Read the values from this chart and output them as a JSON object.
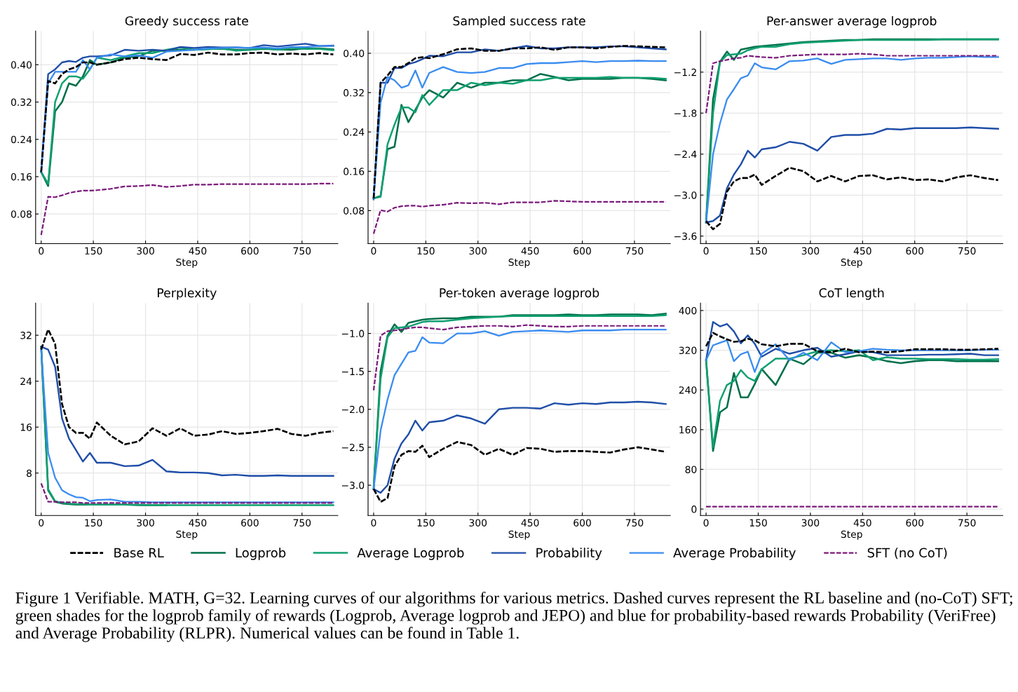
{
  "chart_data": [
    {
      "type": "line",
      "title": "Greedy success rate",
      "xlabel": "Step",
      "grid": true,
      "legend": "bottom",
      "x": [
        0,
        20,
        40,
        60,
        80,
        100,
        120,
        140,
        160,
        200,
        240,
        280,
        320,
        360,
        400,
        440,
        480,
        520,
        560,
        600,
        640,
        680,
        720,
        760,
        800,
        840
      ],
      "xlim": [
        -16,
        853
      ],
      "xticks": [
        0,
        150,
        300,
        450,
        600,
        750
      ],
      "ylim": [
        0.0165,
        0.472
      ],
      "yticks": [
        {
          "value": 0.08,
          "label": "0.08"
        },
        {
          "value": 0.16,
          "label": "0.16"
        },
        {
          "value": 0.24,
          "label": "0.24"
        },
        {
          "value": 0.32,
          "label": "0.32"
        },
        {
          "value": 0.4,
          "label": "0.40"
        }
      ],
      "series": [
        {
          "name": "Base RL",
          "color": "#000000",
          "line_style": "dashed",
          "values": [
            0.17,
            0.365,
            0.36,
            0.38,
            0.39,
            0.395,
            0.405,
            0.405,
            0.4,
            0.405,
            0.412,
            0.415,
            0.412,
            0.41,
            0.423,
            0.421,
            0.426,
            0.422,
            0.422,
            0.425,
            0.426,
            0.422,
            0.424,
            0.422,
            0.425,
            0.422
          ]
        },
        {
          "name": "Logprob",
          "color": "#00704a",
          "line_style": "solid",
          "values": [
            0.17,
            0.14,
            0.3,
            0.32,
            0.36,
            0.355,
            0.375,
            0.41,
            0.4,
            0.405,
            0.415,
            0.418,
            0.43,
            0.43,
            0.432,
            0.432,
            0.434,
            0.434,
            0.432,
            0.432,
            0.434,
            0.433,
            0.432,
            0.435,
            0.435,
            0.433
          ]
        },
        {
          "name": "Average Logprob",
          "color": "#10a072",
          "line_style": "solid",
          "values": [
            0.17,
            0.145,
            0.32,
            0.36,
            0.375,
            0.375,
            0.37,
            0.39,
            0.415,
            0.41,
            0.418,
            0.425,
            0.425,
            0.432,
            0.437,
            0.432,
            0.433,
            0.435,
            0.43,
            0.432,
            0.435,
            0.432,
            0.436,
            0.434,
            0.434,
            0.431
          ]
        },
        {
          "name": "Probability",
          "color": "#1f4ea8",
          "line_style": "solid",
          "values": [
            0.17,
            0.38,
            0.39,
            0.405,
            0.408,
            0.406,
            0.415,
            0.418,
            0.418,
            0.42,
            0.432,
            0.43,
            0.432,
            0.43,
            0.438,
            0.436,
            0.438,
            0.437,
            0.437,
            0.436,
            0.442,
            0.439,
            0.442,
            0.445,
            0.44,
            0.441
          ]
        },
        {
          "name": "Average Probability",
          "color": "#3a8cf0",
          "line_style": "solid",
          "values": [
            0.17,
            0.36,
            0.385,
            0.385,
            0.385,
            0.385,
            0.41,
            0.39,
            0.415,
            0.422,
            0.418,
            0.42,
            0.415,
            0.428,
            0.43,
            0.432,
            0.435,
            0.436,
            0.437,
            0.436,
            0.437,
            0.435,
            0.438,
            0.438,
            0.44,
            0.44
          ]
        },
        {
          "name": "SFT (no CoT)",
          "color": "#7b1a7b",
          "line_style": "dashed",
          "values": [
            0.035,
            0.117,
            0.116,
            0.12,
            0.125,
            0.128,
            0.13,
            0.13,
            0.131,
            0.134,
            0.139,
            0.14,
            0.142,
            0.138,
            0.14,
            0.143,
            0.143,
            0.144,
            0.144,
            0.144,
            0.144,
            0.144,
            0.144,
            0.144,
            0.145,
            0.145
          ]
        }
      ]
    },
    {
      "type": "line",
      "title": "Sampled success rate",
      "xlabel": "Step",
      "grid": true,
      "x": [
        0,
        20,
        40,
        60,
        80,
        100,
        120,
        140,
        160,
        200,
        240,
        280,
        320,
        360,
        400,
        440,
        480,
        520,
        560,
        600,
        640,
        680,
        720,
        760,
        800,
        840
      ],
      "xlim": [
        -16,
        853
      ],
      "xticks": [
        0,
        150,
        300,
        450,
        600,
        750
      ],
      "ylim": [
        0.013,
        0.445
      ],
      "yticks": [
        {
          "value": 0.08,
          "label": "0.08"
        },
        {
          "value": 0.16,
          "label": "0.16"
        },
        {
          "value": 0.24,
          "label": "0.24"
        },
        {
          "value": 0.32,
          "label": "0.32"
        },
        {
          "value": 0.4,
          "label": "0.40"
        }
      ],
      "series": [
        {
          "name": "Base RL",
          "color": "#000000",
          "line_style": "dashed",
          "values": [
            0.105,
            0.34,
            0.355,
            0.372,
            0.372,
            0.38,
            0.39,
            0.392,
            0.39,
            0.398,
            0.408,
            0.41,
            0.405,
            0.405,
            0.41,
            0.41,
            0.412,
            0.407,
            0.412,
            0.412,
            0.41,
            0.413,
            0.415,
            0.414,
            0.413,
            0.412
          ]
        },
        {
          "name": "Logprob",
          "color": "#00704a",
          "line_style": "solid",
          "values": [
            0.105,
            0.11,
            0.205,
            0.21,
            0.295,
            0.26,
            0.285,
            0.31,
            0.325,
            0.31,
            0.34,
            0.33,
            0.34,
            0.34,
            0.345,
            0.345,
            0.358,
            0.352,
            0.345,
            0.348,
            0.348,
            0.348,
            0.35,
            0.35,
            0.348,
            0.345
          ]
        },
        {
          "name": "Average Logprob",
          "color": "#10a072",
          "line_style": "solid",
          "values": [
            0.105,
            0.108,
            0.215,
            0.255,
            0.29,
            0.29,
            0.28,
            0.315,
            0.295,
            0.325,
            0.325,
            0.34,
            0.335,
            0.34,
            0.338,
            0.345,
            0.345,
            0.35,
            0.35,
            0.35,
            0.35,
            0.352,
            0.35,
            0.35,
            0.35,
            0.348
          ]
        },
        {
          "name": "Probability",
          "color": "#1f4ea8",
          "line_style": "solid",
          "values": [
            0.103,
            0.34,
            0.34,
            0.37,
            0.37,
            0.378,
            0.382,
            0.388,
            0.395,
            0.394,
            0.402,
            0.402,
            0.408,
            0.405,
            0.41,
            0.415,
            0.41,
            0.41,
            0.412,
            0.412,
            0.412,
            0.414,
            0.414,
            0.412,
            0.41,
            0.408
          ]
        },
        {
          "name": "Average Probability",
          "color": "#3a8cf0",
          "line_style": "solid",
          "values": [
            0.105,
            0.3,
            0.352,
            0.345,
            0.33,
            0.335,
            0.365,
            0.33,
            0.36,
            0.372,
            0.362,
            0.36,
            0.362,
            0.37,
            0.37,
            0.378,
            0.38,
            0.38,
            0.382,
            0.384,
            0.382,
            0.384,
            0.384,
            0.385,
            0.384,
            0.384
          ]
        },
        {
          "name": "SFT (no CoT)",
          "color": "#7b1a7b",
          "line_style": "dashed",
          "values": [
            0.033,
            0.081,
            0.078,
            0.086,
            0.089,
            0.09,
            0.09,
            0.088,
            0.09,
            0.092,
            0.096,
            0.095,
            0.096,
            0.093,
            0.097,
            0.097,
            0.097,
            0.1,
            0.099,
            0.098,
            0.098,
            0.098,
            0.098,
            0.098,
            0.098,
            0.098
          ]
        }
      ]
    },
    {
      "type": "line",
      "title": "Per-answer average logprob",
      "xlabel": "Step",
      "grid": true,
      "x": [
        0,
        20,
        40,
        60,
        80,
        100,
        120,
        140,
        160,
        200,
        240,
        280,
        320,
        360,
        400,
        440,
        480,
        520,
        560,
        600,
        640,
        680,
        720,
        760,
        800,
        840
      ],
      "xlim": [
        -16,
        853
      ],
      "xticks": [
        0,
        150,
        300,
        450,
        600,
        750
      ],
      "ylim": [
        -3.71,
        -0.6
      ],
      "yticks": [
        {
          "value": -3.6,
          "label": "−3.6"
        },
        {
          "value": -3.0,
          "label": "−3.0"
        },
        {
          "value": -2.4,
          "label": "−2.4"
        },
        {
          "value": -1.8,
          "label": "−1.8"
        },
        {
          "value": -1.2,
          "label": "−1.2"
        }
      ],
      "series": [
        {
          "name": "Base RL",
          "color": "#000000",
          "line_style": "dashed",
          "values": [
            -3.38,
            -3.5,
            -3.42,
            -2.95,
            -2.8,
            -2.75,
            -2.75,
            -2.7,
            -2.85,
            -2.72,
            -2.6,
            -2.65,
            -2.8,
            -2.72,
            -2.8,
            -2.72,
            -2.71,
            -2.77,
            -2.74,
            -2.78,
            -2.77,
            -2.8,
            -2.74,
            -2.71,
            -2.75,
            -2.78
          ]
        },
        {
          "name": "Logprob",
          "color": "#00704a",
          "line_style": "solid",
          "values": [
            -3.4,
            -1.6,
            -1.05,
            -0.9,
            -1.02,
            -0.87,
            -0.85,
            -0.83,
            -0.82,
            -0.8,
            -0.78,
            -0.76,
            -0.75,
            -0.74,
            -0.73,
            -0.73,
            -0.72,
            -0.72,
            -0.72,
            -0.72,
            -0.72,
            -0.72,
            -0.72,
            -0.72,
            -0.72,
            -0.72
          ]
        },
        {
          "name": "Average Logprob",
          "color": "#10a072",
          "line_style": "solid",
          "values": [
            -3.4,
            -1.8,
            -1.05,
            -0.95,
            -0.94,
            -0.93,
            -0.88,
            -0.85,
            -0.83,
            -0.83,
            -0.79,
            -0.77,
            -0.76,
            -0.75,
            -0.74,
            -0.73,
            -0.73,
            -0.73,
            -0.73,
            -0.73,
            -0.73,
            -0.72,
            -0.72,
            -0.72,
            -0.72,
            -0.72
          ]
        },
        {
          "name": "Probability",
          "color": "#1f4ea8",
          "line_style": "solid",
          "values": [
            -3.4,
            -3.38,
            -3.3,
            -2.9,
            -2.7,
            -2.55,
            -2.35,
            -2.45,
            -2.33,
            -2.3,
            -2.22,
            -2.25,
            -2.35,
            -2.15,
            -2.12,
            -2.12,
            -2.1,
            -2.03,
            -2.04,
            -2.02,
            -2.02,
            -2.02,
            -2.02,
            -2.01,
            -2.02,
            -2.03
          ]
        },
        {
          "name": "Average Probability",
          "color": "#3a8cf0",
          "line_style": "solid",
          "values": [
            -3.4,
            -2.4,
            -1.95,
            -1.6,
            -1.45,
            -1.29,
            -1.25,
            -1.07,
            -1.13,
            -1.16,
            -1.04,
            -1.03,
            -1.0,
            -1.08,
            -1.02,
            -1.01,
            -1.0,
            -1.0,
            -1.02,
            -1.0,
            -0.99,
            -0.99,
            -0.98,
            -0.97,
            -0.98,
            -0.98
          ]
        },
        {
          "name": "SFT (no CoT)",
          "color": "#7b1a7b",
          "line_style": "dashed",
          "values": [
            -1.8,
            -1.07,
            -1.04,
            -1.02,
            -1.0,
            -0.99,
            -0.96,
            -0.97,
            -0.98,
            -0.99,
            -0.96,
            -0.95,
            -0.94,
            -0.94,
            -0.94,
            -0.93,
            -0.94,
            -0.96,
            -0.96,
            -0.96,
            -0.96,
            -0.96,
            -0.96,
            -0.96,
            -0.96,
            -0.96
          ]
        }
      ]
    },
    {
      "type": "line",
      "title": "Perplexity",
      "xlabel": "Step",
      "grid": true,
      "x": [
        0,
        20,
        40,
        60,
        80,
        100,
        120,
        140,
        160,
        200,
        240,
        280,
        320,
        360,
        400,
        440,
        480,
        520,
        560,
        600,
        640,
        680,
        720,
        760,
        800,
        840
      ],
      "xlim": [
        -16,
        853
      ],
      "xticks": [
        0,
        150,
        300,
        450,
        600,
        750
      ],
      "ylim": [
        0.6,
        37.6
      ],
      "yticks": [
        8,
        16,
        24,
        32
      ],
      "series": [
        {
          "name": "Base RL",
          "color": "#000000",
          "line_style": "dashed",
          "values": [
            29.5,
            33,
            30.5,
            20,
            16,
            15,
            15,
            14,
            16.8,
            14.5,
            13,
            13.5,
            15.8,
            14.5,
            15.8,
            14.5,
            14.7,
            15.3,
            14.8,
            15,
            15.3,
            15.7,
            14.8,
            14.5,
            15,
            15.3
          ]
        },
        {
          "name": "Logprob",
          "color": "#00704a",
          "line_style": "solid",
          "values": [
            30,
            5,
            3,
            2.7,
            2.6,
            2.5,
            2.5,
            2.5,
            2.5,
            2.5,
            2.5,
            2.4,
            2.4,
            2.4,
            null,
            null,
            null,
            null,
            null,
            null,
            null,
            null,
            null,
            null,
            null,
            null
          ]
        },
        {
          "name": "Average Logprob",
          "color": "#10a072",
          "line_style": "solid",
          "values": [
            30,
            5.2,
            3.1,
            2.8,
            2.7,
            2.6,
            2.6,
            2.5,
            2.5,
            2.5,
            2.5,
            2.5,
            2.4,
            2.4,
            2.4,
            2.4,
            2.4,
            2.4,
            2.4,
            2.4,
            2.4,
            2.4,
            2.4,
            2.4,
            2.4,
            2.4
          ]
        },
        {
          "name": "Probability",
          "color": "#1f4ea8",
          "line_style": "solid",
          "values": [
            30,
            29.5,
            26.5,
            17.5,
            14,
            12,
            10,
            11.5,
            9.8,
            9.8,
            9.2,
            9.3,
            10.3,
            8.3,
            8.1,
            8.1,
            8.0,
            7.6,
            7.7,
            7.5,
            7.5,
            7.6,
            7.5,
            7.5,
            7.5,
            7.5
          ]
        },
        {
          "name": "Average Probability",
          "color": "#3a8cf0",
          "line_style": "solid",
          "values": [
            29.5,
            11.5,
            7.2,
            5,
            4.3,
            3.8,
            3.7,
            3.1,
            3.3,
            3.4,
            3.0,
            3.0,
            2.9,
            2.9,
            2.9,
            2.9,
            2.9,
            2.9,
            2.9,
            2.9,
            2.9,
            2.9,
            2.9,
            2.9,
            2.9,
            2.9
          ]
        },
        {
          "name": "SFT (no CoT)",
          "color": "#7b1a7b",
          "line_style": "dashed",
          "values": [
            6.2,
            3.0,
            3.0,
            2.9,
            2.9,
            2.9,
            2.8,
            2.8,
            2.8,
            2.8,
            2.8,
            2.8,
            2.8,
            2.8,
            2.8,
            2.8,
            2.8,
            2.8,
            2.8,
            2.8,
            2.8,
            2.8,
            2.8,
            2.8,
            2.8,
            2.8
          ]
        }
      ]
    },
    {
      "type": "line",
      "title": "Per-token average logprob",
      "xlabel": "Step",
      "grid": true,
      "x": [
        0,
        20,
        40,
        60,
        80,
        100,
        120,
        140,
        160,
        200,
        240,
        280,
        320,
        360,
        400,
        440,
        480,
        520,
        560,
        600,
        640,
        680,
        720,
        760,
        800,
        840
      ],
      "xlim": [
        -16,
        853
      ],
      "xticks": [
        0,
        150,
        300,
        450,
        600,
        750
      ],
      "ylim": [
        -3.4,
        -0.6
      ],
      "yticks": [
        {
          "value": -3.0,
          "label": "−3.0"
        },
        {
          "value": -2.5,
          "label": "−2.5"
        },
        {
          "value": -2.0,
          "label": "−2.0"
        },
        {
          "value": -1.5,
          "label": "−1.5"
        },
        {
          "value": -1.0,
          "label": "−1.0"
        }
      ],
      "series": [
        {
          "name": "Base RL",
          "color": "#000000",
          "line_style": "dashed",
          "values": [
            -3.05,
            -3.22,
            -3.17,
            -2.75,
            -2.6,
            -2.55,
            -2.56,
            -2.48,
            -2.63,
            -2.52,
            -2.43,
            -2.47,
            -2.6,
            -2.52,
            -2.6,
            -2.51,
            -2.52,
            -2.56,
            -2.55,
            -2.55,
            -2.56,
            -2.57,
            -2.53,
            -2.5,
            -2.53,
            -2.56
          ]
        },
        {
          "name": "Logprob",
          "color": "#00704a",
          "line_style": "solid",
          "values": [
            -3.05,
            -1.5,
            -1.03,
            -0.88,
            -0.98,
            -0.86,
            -0.84,
            -0.82,
            -0.81,
            -0.8,
            -0.8,
            -0.78,
            -0.78,
            -0.78,
            -0.76,
            -0.76,
            -0.76,
            -0.76,
            -0.75,
            -0.76,
            -0.76,
            -0.75,
            -0.75,
            -0.75,
            -0.76,
            -0.74
          ]
        },
        {
          "name": "Average Logprob",
          "color": "#10a072",
          "line_style": "solid",
          "values": [
            -3.05,
            -1.6,
            -1.05,
            -0.93,
            -0.92,
            -0.91,
            -0.88,
            -0.85,
            -0.84,
            -0.84,
            -0.82,
            -0.8,
            -0.79,
            -0.78,
            -0.77,
            -0.77,
            -0.77,
            -0.77,
            -0.77,
            -0.77,
            -0.77,
            -0.77,
            -0.77,
            -0.77,
            -0.77,
            -0.76
          ]
        },
        {
          "name": "Probability",
          "color": "#1f4ea8",
          "line_style": "solid",
          "values": [
            -3.05,
            -3.1,
            -3.0,
            -2.65,
            -2.45,
            -2.33,
            -2.15,
            -2.28,
            -2.17,
            -2.15,
            -2.08,
            -2.12,
            -2.19,
            -2.0,
            -1.98,
            -1.98,
            -1.99,
            -1.92,
            -1.94,
            -1.92,
            -1.93,
            -1.91,
            -1.91,
            -1.9,
            -1.91,
            -1.93
          ]
        },
        {
          "name": "Average Probability",
          "color": "#3a8cf0",
          "line_style": "solid",
          "values": [
            -3.05,
            -2.28,
            -1.87,
            -1.55,
            -1.4,
            -1.25,
            -1.23,
            -1.05,
            -1.12,
            -1.13,
            -1.0,
            -1.0,
            -0.97,
            -1.03,
            -0.98,
            -0.97,
            -0.96,
            -0.97,
            -0.98,
            -0.96,
            -0.96,
            -0.96,
            -0.95,
            -0.95,
            -0.95,
            -0.95
          ]
        },
        {
          "name": "SFT (no CoT)",
          "color": "#7b1a7b",
          "line_style": "dashed",
          "values": [
            -1.75,
            -1.03,
            -0.97,
            -0.96,
            -0.95,
            -0.93,
            -0.92,
            -0.92,
            -0.93,
            -0.95,
            -0.92,
            -0.91,
            -0.9,
            -0.9,
            -0.91,
            -0.89,
            -0.9,
            -0.91,
            -0.91,
            -0.9,
            -0.9,
            -0.9,
            -0.9,
            -0.9,
            -0.9,
            -0.9
          ]
        }
      ]
    },
    {
      "type": "line",
      "title": "CoT length",
      "xlabel": "Step",
      "grid": true,
      "x": [
        0,
        20,
        40,
        60,
        80,
        100,
        120,
        140,
        160,
        200,
        240,
        280,
        320,
        360,
        400,
        440,
        480,
        520,
        560,
        600,
        640,
        680,
        720,
        760,
        800,
        840
      ],
      "xlim": [
        -16,
        853
      ],
      "xticks": [
        0,
        150,
        300,
        450,
        600,
        750
      ],
      "ylim": [
        -13,
        415
      ],
      "yticks": [
        0,
        80,
        160,
        240,
        320,
        400
      ],
      "annotations": [
        "Figure 1 Verifiable. MATH, G=32. Learning curves of our algorithms for various metrics. Dashed curves represent the RL baseline and (no-CoT) SFT; green shades for the logprob family of rewards (Logprob, Average logprob and JEPO) and blue for probability-based rewards Probability (VeriFree) and Average Probability (RLPR). Numerical values can be found in Table 1."
      ],
      "series": [
        {
          "name": "Base RL",
          "color": "#000000",
          "line_style": "dashed",
          "values": [
            328,
            355,
            348,
            342,
            337,
            338,
            343,
            340,
            332,
            328,
            333,
            333,
            318,
            316,
            323,
            316,
            317,
            316,
            318,
            322,
            322,
            322,
            321,
            321,
            322,
            323
          ]
        },
        {
          "name": "Logprob",
          "color": "#00704a",
          "line_style": "solid",
          "values": [
            300,
            117,
            195,
            205,
            274,
            225,
            225,
            252,
            282,
            250,
            303,
            292,
            315,
            315,
            305,
            310,
            305,
            298,
            294,
            298,
            300,
            300,
            298,
            298,
            298,
            298
          ]
        },
        {
          "name": "Average Logprob",
          "color": "#10a072",
          "line_style": "solid",
          "values": [
            300,
            125,
            218,
            250,
            258,
            280,
            265,
            258,
            282,
            303,
            303,
            310,
            318,
            320,
            318,
            320,
            300,
            306,
            303,
            303,
            302,
            302,
            302,
            301,
            301,
            302
          ]
        },
        {
          "name": "Probability",
          "color": "#1f4ea8",
          "line_style": "solid",
          "values": [
            300,
            377,
            368,
            373,
            358,
            334,
            350,
            333,
            307,
            323,
            313,
            320,
            325,
            307,
            312,
            318,
            316,
            310,
            310,
            310,
            311,
            311,
            312,
            313,
            310,
            310
          ]
        },
        {
          "name": "Average Probability",
          "color": "#3a8cf0",
          "line_style": "solid",
          "values": [
            300,
            330,
            335,
            340,
            298,
            312,
            317,
            276,
            313,
            332,
            300,
            315,
            300,
            336,
            316,
            318,
            323,
            321,
            320,
            320,
            320,
            320,
            320,
            320,
            321,
            321
          ]
        },
        {
          "name": "SFT (no CoT)",
          "color": "#7b1a7b",
          "line_style": "dashed",
          "values": [
            5,
            5,
            5,
            5,
            5,
            5,
            5,
            5,
            5,
            5,
            5,
            5,
            5,
            5,
            5,
            5,
            5,
            5,
            5,
            5,
            5,
            5,
            5,
            5,
            5,
            5
          ]
        }
      ]
    }
  ]
}
